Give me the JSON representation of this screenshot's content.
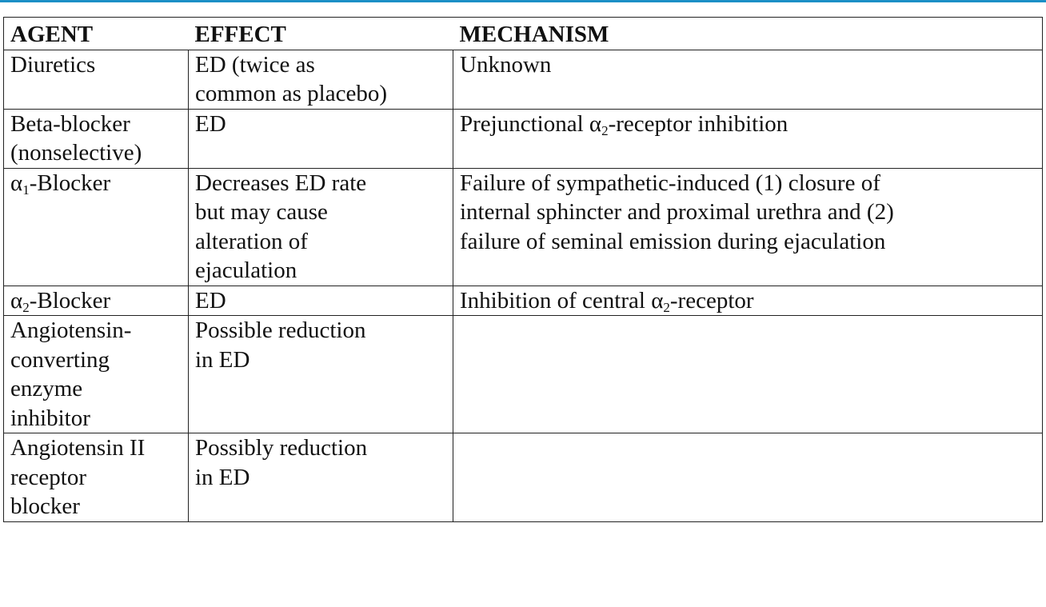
{
  "table": {
    "headers": [
      "AGENT",
      "EFFECT",
      "MECHANISM"
    ],
    "rows": [
      {
        "agent": [
          "Diuretics"
        ],
        "effect": [
          "ED (twice as",
          "common as placebo)"
        ],
        "mechanism": [
          "Unknown"
        ]
      },
      {
        "agent": [
          "Beta-blocker",
          "(nonselective)"
        ],
        "effect": [
          "ED"
        ],
        "mechanism": [
          "Prejunctional α2-receptor inhibition"
        ]
      },
      {
        "agent": [
          "α1-Blocker"
        ],
        "effect": [
          "Decreases ED rate",
          "but may cause",
          "alteration of",
          "ejaculation"
        ],
        "mechanism": [
          "Failure of sympathetic-induced (1) closure of",
          "internal sphincter and proximal urethra and (2)",
          "failure of seminal emission during ejaculation"
        ]
      },
      {
        "agent": [
          "α2-Blocker"
        ],
        "effect": [
          "ED"
        ],
        "mechanism": [
          "Inhibition of central α2-receptor"
        ]
      },
      {
        "agent": [
          "Angiotensin-",
          "converting",
          "enzyme",
          "inhibitor"
        ],
        "effect": [
          "Possible reduction",
          "in ED"
        ],
        "mechanism": []
      },
      {
        "agent": [
          "Angiotensin II",
          "receptor",
          "blocker"
        ],
        "effect": [
          "Possibly reduction",
          "in ED"
        ],
        "mechanism": []
      }
    ]
  },
  "colors": {
    "top_rule": "#1b8fc6",
    "border": "#222222",
    "text": "#111111"
  }
}
